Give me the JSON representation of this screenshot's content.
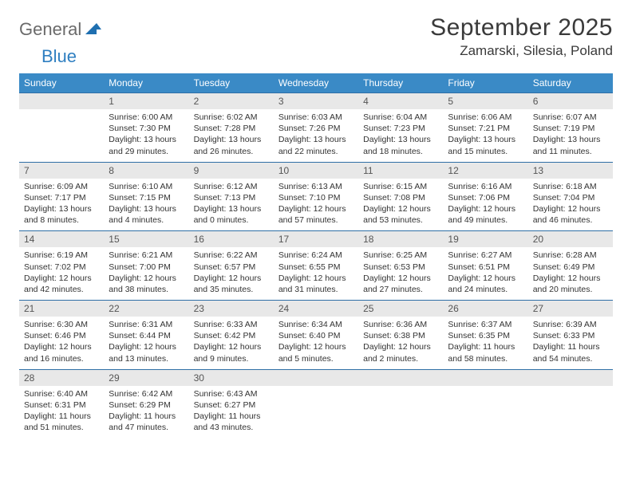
{
  "brand": {
    "word1": "General",
    "word2": "Blue"
  },
  "title": "September 2025",
  "location": "Zamarski, Silesia, Poland",
  "days_of_week": [
    "Sunday",
    "Monday",
    "Tuesday",
    "Wednesday",
    "Thursday",
    "Friday",
    "Saturday"
  ],
  "colors": {
    "header_bg": "#3a8ac6",
    "header_text": "#ffffff",
    "rule": "#2f6fa6",
    "daynum_bg": "#e8e8e8",
    "body_text": "#333333",
    "logo_gray": "#6a6a6a",
    "logo_blue": "#2f7fc1"
  },
  "weeks": [
    [
      {
        "n": "",
        "lines": []
      },
      {
        "n": "1",
        "lines": [
          "Sunrise: 6:00 AM",
          "Sunset: 7:30 PM",
          "Daylight: 13 hours",
          "and 29 minutes."
        ]
      },
      {
        "n": "2",
        "lines": [
          "Sunrise: 6:02 AM",
          "Sunset: 7:28 PM",
          "Daylight: 13 hours",
          "and 26 minutes."
        ]
      },
      {
        "n": "3",
        "lines": [
          "Sunrise: 6:03 AM",
          "Sunset: 7:26 PM",
          "Daylight: 13 hours",
          "and 22 minutes."
        ]
      },
      {
        "n": "4",
        "lines": [
          "Sunrise: 6:04 AM",
          "Sunset: 7:23 PM",
          "Daylight: 13 hours",
          "and 18 minutes."
        ]
      },
      {
        "n": "5",
        "lines": [
          "Sunrise: 6:06 AM",
          "Sunset: 7:21 PM",
          "Daylight: 13 hours",
          "and 15 minutes."
        ]
      },
      {
        "n": "6",
        "lines": [
          "Sunrise: 6:07 AM",
          "Sunset: 7:19 PM",
          "Daylight: 13 hours",
          "and 11 minutes."
        ]
      }
    ],
    [
      {
        "n": "7",
        "lines": [
          "Sunrise: 6:09 AM",
          "Sunset: 7:17 PM",
          "Daylight: 13 hours",
          "and 8 minutes."
        ]
      },
      {
        "n": "8",
        "lines": [
          "Sunrise: 6:10 AM",
          "Sunset: 7:15 PM",
          "Daylight: 13 hours",
          "and 4 minutes."
        ]
      },
      {
        "n": "9",
        "lines": [
          "Sunrise: 6:12 AM",
          "Sunset: 7:13 PM",
          "Daylight: 13 hours",
          "and 0 minutes."
        ]
      },
      {
        "n": "10",
        "lines": [
          "Sunrise: 6:13 AM",
          "Sunset: 7:10 PM",
          "Daylight: 12 hours",
          "and 57 minutes."
        ]
      },
      {
        "n": "11",
        "lines": [
          "Sunrise: 6:15 AM",
          "Sunset: 7:08 PM",
          "Daylight: 12 hours",
          "and 53 minutes."
        ]
      },
      {
        "n": "12",
        "lines": [
          "Sunrise: 6:16 AM",
          "Sunset: 7:06 PM",
          "Daylight: 12 hours",
          "and 49 minutes."
        ]
      },
      {
        "n": "13",
        "lines": [
          "Sunrise: 6:18 AM",
          "Sunset: 7:04 PM",
          "Daylight: 12 hours",
          "and 46 minutes."
        ]
      }
    ],
    [
      {
        "n": "14",
        "lines": [
          "Sunrise: 6:19 AM",
          "Sunset: 7:02 PM",
          "Daylight: 12 hours",
          "and 42 minutes."
        ]
      },
      {
        "n": "15",
        "lines": [
          "Sunrise: 6:21 AM",
          "Sunset: 7:00 PM",
          "Daylight: 12 hours",
          "and 38 minutes."
        ]
      },
      {
        "n": "16",
        "lines": [
          "Sunrise: 6:22 AM",
          "Sunset: 6:57 PM",
          "Daylight: 12 hours",
          "and 35 minutes."
        ]
      },
      {
        "n": "17",
        "lines": [
          "Sunrise: 6:24 AM",
          "Sunset: 6:55 PM",
          "Daylight: 12 hours",
          "and 31 minutes."
        ]
      },
      {
        "n": "18",
        "lines": [
          "Sunrise: 6:25 AM",
          "Sunset: 6:53 PM",
          "Daylight: 12 hours",
          "and 27 minutes."
        ]
      },
      {
        "n": "19",
        "lines": [
          "Sunrise: 6:27 AM",
          "Sunset: 6:51 PM",
          "Daylight: 12 hours",
          "and 24 minutes."
        ]
      },
      {
        "n": "20",
        "lines": [
          "Sunrise: 6:28 AM",
          "Sunset: 6:49 PM",
          "Daylight: 12 hours",
          "and 20 minutes."
        ]
      }
    ],
    [
      {
        "n": "21",
        "lines": [
          "Sunrise: 6:30 AM",
          "Sunset: 6:46 PM",
          "Daylight: 12 hours",
          "and 16 minutes."
        ]
      },
      {
        "n": "22",
        "lines": [
          "Sunrise: 6:31 AM",
          "Sunset: 6:44 PM",
          "Daylight: 12 hours",
          "and 13 minutes."
        ]
      },
      {
        "n": "23",
        "lines": [
          "Sunrise: 6:33 AM",
          "Sunset: 6:42 PM",
          "Daylight: 12 hours",
          "and 9 minutes."
        ]
      },
      {
        "n": "24",
        "lines": [
          "Sunrise: 6:34 AM",
          "Sunset: 6:40 PM",
          "Daylight: 12 hours",
          "and 5 minutes."
        ]
      },
      {
        "n": "25",
        "lines": [
          "Sunrise: 6:36 AM",
          "Sunset: 6:38 PM",
          "Daylight: 12 hours",
          "and 2 minutes."
        ]
      },
      {
        "n": "26",
        "lines": [
          "Sunrise: 6:37 AM",
          "Sunset: 6:35 PM",
          "Daylight: 11 hours",
          "and 58 minutes."
        ]
      },
      {
        "n": "27",
        "lines": [
          "Sunrise: 6:39 AM",
          "Sunset: 6:33 PM",
          "Daylight: 11 hours",
          "and 54 minutes."
        ]
      }
    ],
    [
      {
        "n": "28",
        "lines": [
          "Sunrise: 6:40 AM",
          "Sunset: 6:31 PM",
          "Daylight: 11 hours",
          "and 51 minutes."
        ]
      },
      {
        "n": "29",
        "lines": [
          "Sunrise: 6:42 AM",
          "Sunset: 6:29 PM",
          "Daylight: 11 hours",
          "and 47 minutes."
        ]
      },
      {
        "n": "30",
        "lines": [
          "Sunrise: 6:43 AM",
          "Sunset: 6:27 PM",
          "Daylight: 11 hours",
          "and 43 minutes."
        ]
      },
      {
        "n": "",
        "lines": []
      },
      {
        "n": "",
        "lines": []
      },
      {
        "n": "",
        "lines": []
      },
      {
        "n": "",
        "lines": []
      }
    ]
  ]
}
